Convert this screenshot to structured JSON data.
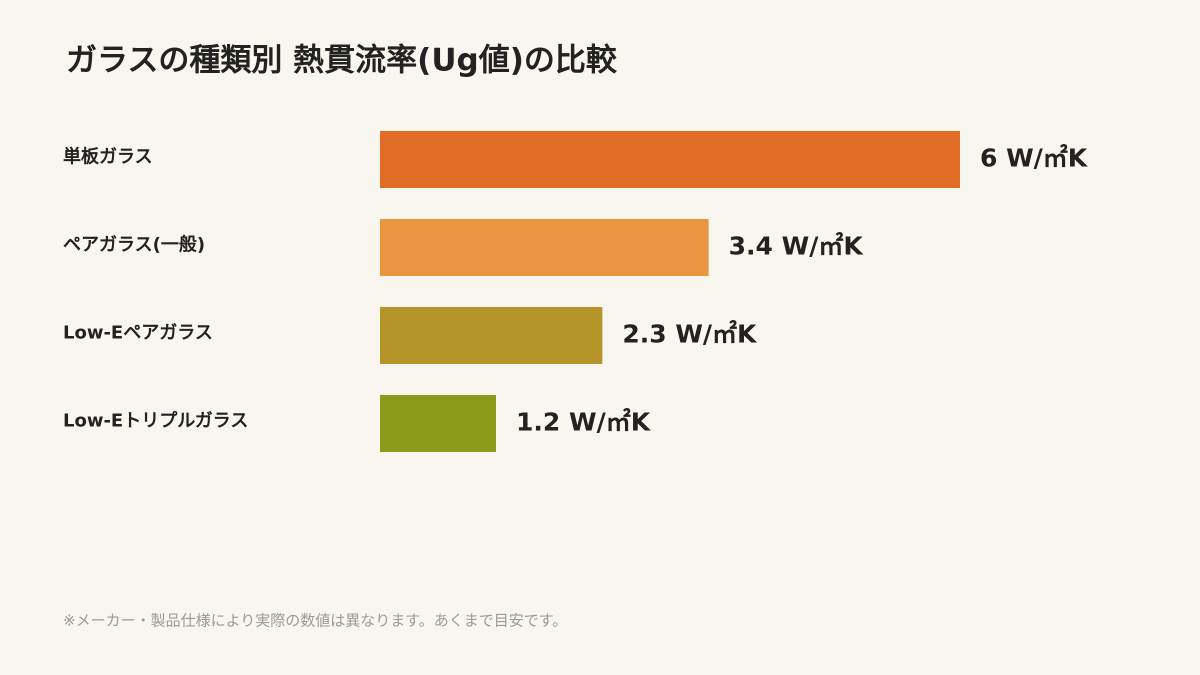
{
  "chart_data": {
    "type": "bar",
    "orientation": "horizontal",
    "title": "ガラスの種類別 熱貫流率(Ug値)の比較",
    "categories": [
      "単板ガラス",
      "ペアガラス(一般)",
      "Low-Eペアガラス",
      "Low-Eトリプルガラス"
    ],
    "values": [
      6,
      3.4,
      2.3,
      1.2
    ],
    "value_labels": [
      "6 W/㎡K",
      "3.4 W/㎡K",
      "2.3 W/㎡K",
      "1.2 W/㎡K"
    ],
    "colors": [
      "#e06c25",
      "#e89640",
      "#b5952a",
      "#8e9a1a"
    ],
    "footnote": "※メーカー・製品仕様により実際の数値は異なります。あくまで目安です。"
  }
}
